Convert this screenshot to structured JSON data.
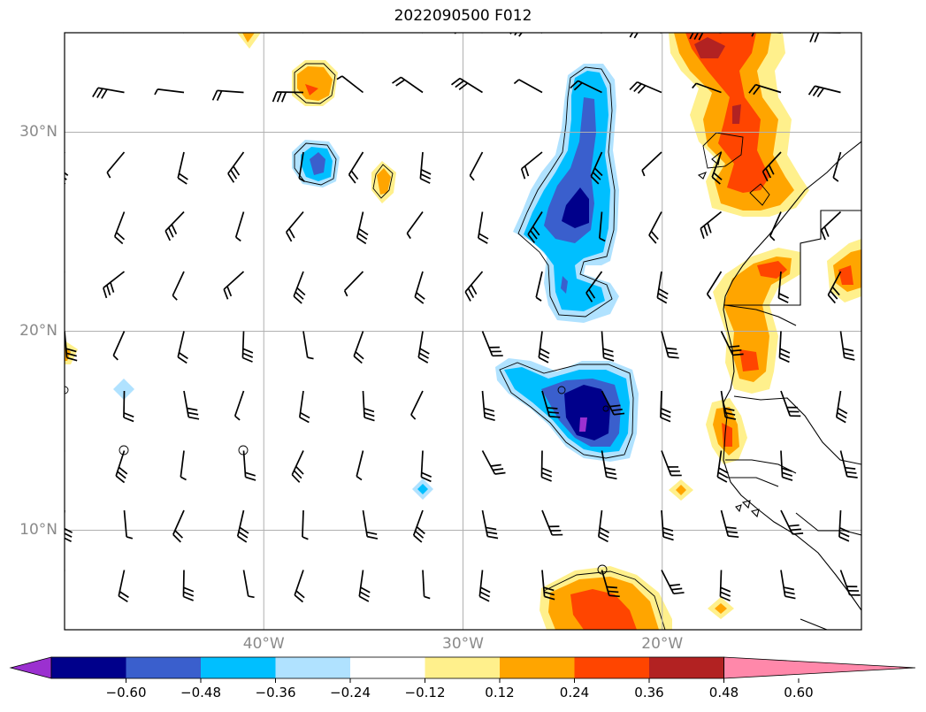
{
  "title": "2022090500 F012",
  "lat_labels": [
    {
      "text": "30°N",
      "lat": 30
    },
    {
      "text": "20°N",
      "lat": 20
    },
    {
      "text": "10°N",
      "lat": 10
    }
  ],
  "lon_labels": [
    {
      "text": "40°W",
      "lon": -40
    },
    {
      "text": "30°W",
      "lon": -30
    },
    {
      "text": "20°W",
      "lon": -20
    }
  ],
  "extent": {
    "lon_min": -50,
    "lon_max": -10,
    "lat_min": 5,
    "lat_max": 35
  },
  "colorbar": {
    "colors": [
      "#9b30d0",
      "#00008b",
      "#3a5fcd",
      "#00bfff",
      "#b0e2ff",
      "#ffffff",
      "#fff08c",
      "#ffa500",
      "#ff4500",
      "#b22222",
      "#ff88aa"
    ],
    "ticks": [
      "−0.60",
      "−0.48",
      "−0.36",
      "−0.24",
      "−0.12",
      "0.12",
      "0.24",
      "0.36",
      "0.48",
      "0.60"
    ]
  },
  "colors": {
    "grid": "#b0b0b0",
    "coast": "#000000",
    "label": "#8a8a8a"
  }
}
